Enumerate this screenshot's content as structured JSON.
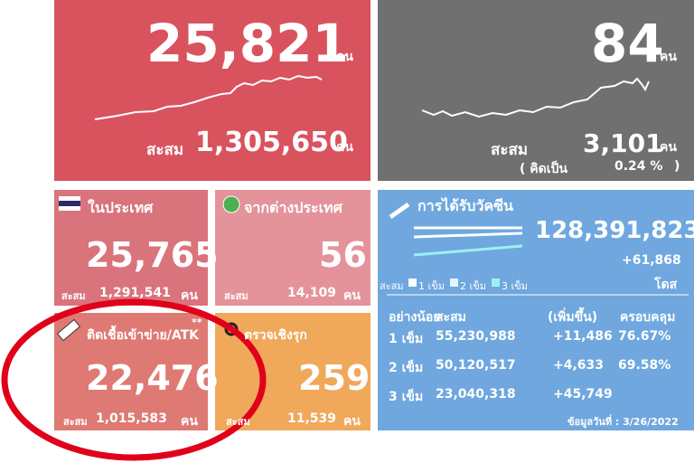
{
  "daily_cases": {
    "value": "25,821",
    "unit": "คน",
    "cumulative_label": "สะสม",
    "cumulative": "1,305,650",
    "cumulative_unit": "คน"
  },
  "deaths": {
    "value": "84",
    "unit": "คน",
    "cumulative_label": "สะสม",
    "cumulative": "3,101",
    "cumulative_unit": "คน",
    "ratio_prefix": "( คิดเป็น",
    "ratio": "0.24 %",
    "ratio_suffix": ")"
  },
  "domestic": {
    "title": "ในประเทศ",
    "value": "25,765",
    "cumulative_label": "สะสม",
    "cumulative": "1,291,541",
    "cumulative_unit": "คน"
  },
  "imported": {
    "title": "จากต่างประเทศ",
    "value": "56",
    "cumulative_label": "สะสม",
    "cumulative": "14,109",
    "cumulative_unit": "คน"
  },
  "atk": {
    "title": "ติดเชื้อเข้าข่าย/ATK",
    "note": "**",
    "value": "22,476",
    "cumulative_label": "สะสม",
    "cumulative": "1,015,583",
    "cumulative_unit": "คน"
  },
  "active": {
    "title": "ตรวจเชิงรุก",
    "value": "259",
    "cumulative_label": "สะสม",
    "cumulative": "11,539",
    "cumulative_unit": "คน"
  },
  "vaccine": {
    "title": "การได้รับวัคซีน",
    "total": "128,391,823",
    "increase": "+61,868",
    "unit": "โดส",
    "legend": {
      "label": "สะสม",
      "items": [
        "1 เข็ม",
        "2 เข็ม",
        "3 เข็ม"
      ]
    },
    "table": {
      "header": [
        "อย่างน้อย",
        "สะสม",
        "(เพิ่มขึ้น)",
        "ครอบคลุม"
      ],
      "rows": [
        [
          "1 เข็ม",
          "55,230,988",
          "+11,486",
          "76.67%"
        ],
        [
          "2 เข็ม",
          "50,120,517",
          "+4,633",
          "69.58%"
        ],
        [
          "3 เข็ม",
          "23,040,318",
          "+45,749"
        ]
      ]
    },
    "footer": "ข้อมูลวันที่ : 3/26/2022"
  }
}
